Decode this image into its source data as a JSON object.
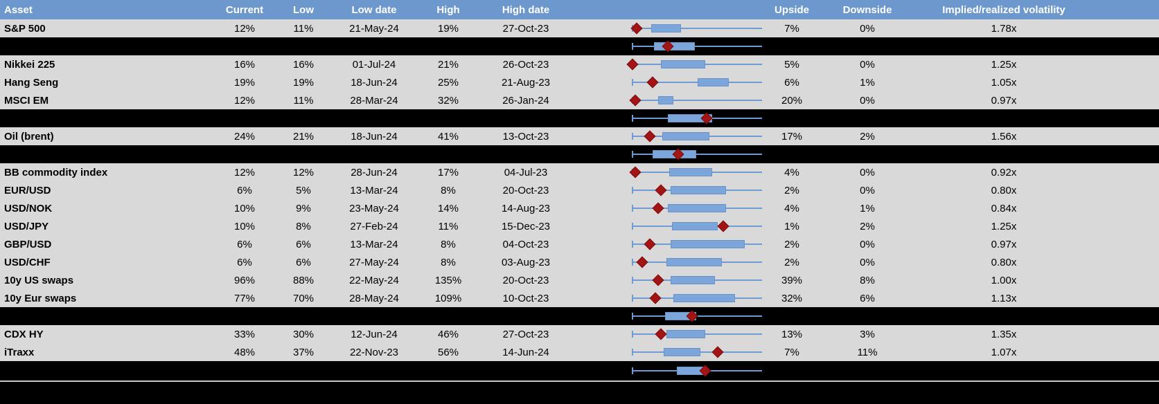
{
  "colors": {
    "header_blue": "#6D98CD",
    "row_gray": "#D9D9D9",
    "separator_black": "#000000",
    "box_blue": "#7CA5DC",
    "box_border": "#6A93C3",
    "whisker_blue": "#6F9BD3",
    "diamond_red": "#A31414",
    "divider_gray": "#C9C9C9"
  },
  "chart_data": {
    "type": "table",
    "columns": [
      "Asset",
      "Current",
      "Low",
      "Low date",
      "High",
      "High date",
      "",
      "Upside",
      "Downside",
      "Implied/realized volatility"
    ],
    "layout_hints": {
      "boxplot_column": "whisker spans full low-high range track for every row; blue box = interquartile range; red diamond = current level; positions below are fractions 0-1 of the track width",
      "separator_rows": "black bands carry aggregate boxplots with no text"
    },
    "rows": [
      {
        "type": "data",
        "asset": "S&P 500",
        "current": "12%",
        "low": "11%",
        "low_date": "21-May-24",
        "high": "19%",
        "high_date": "27-Oct-23",
        "upside": "7%",
        "downside": "0%",
        "implied_realized": "1.78x",
        "plot": {
          "current": 0.03,
          "box_start": 0.13,
          "box_end": 0.34
        }
      },
      {
        "type": "separator",
        "plot": {
          "current": 0.25,
          "box_start": 0.15,
          "box_end": 0.44
        }
      },
      {
        "type": "data",
        "asset": "Nikkei 225",
        "current": "16%",
        "low": "16%",
        "low_date": "01-Jul-24",
        "high": "21%",
        "high_date": "26-Oct-23",
        "upside": "5%",
        "downside": "0%",
        "implied_realized": "1.25x",
        "plot": {
          "current": 0.0,
          "box_start": 0.2,
          "box_end": 0.51
        }
      },
      {
        "type": "data",
        "asset": "Hang Seng",
        "current": "19%",
        "low": "19%",
        "low_date": "18-Jun-24",
        "high": "25%",
        "high_date": "21-Aug-23",
        "upside": "6%",
        "downside": "1%",
        "implied_realized": "1.05x",
        "plot": {
          "current": 0.14,
          "box_start": 0.46,
          "box_end": 0.68
        }
      },
      {
        "type": "data",
        "asset": "MSCI EM",
        "current": "12%",
        "low": "11%",
        "low_date": "28-Mar-24",
        "high": "32%",
        "high_date": "26-Jan-24",
        "upside": "20%",
        "downside": "0%",
        "implied_realized": "0.97x",
        "plot": {
          "current": 0.02,
          "box_start": 0.18,
          "box_end": 0.29
        }
      },
      {
        "type": "separator",
        "plot": {
          "current": 0.52,
          "box_start": 0.25,
          "box_end": 0.56
        }
      },
      {
        "type": "data",
        "asset": "Oil (brent)",
        "current": "24%",
        "low": "21%",
        "low_date": "18-Jun-24",
        "high": "41%",
        "high_date": "13-Oct-23",
        "upside": "17%",
        "downside": "2%",
        "implied_realized": "1.56x",
        "plot": {
          "current": 0.12,
          "box_start": 0.21,
          "box_end": 0.54
        }
      },
      {
        "type": "separator",
        "plot": {
          "current": 0.32,
          "box_start": 0.14,
          "box_end": 0.45
        }
      },
      {
        "type": "data",
        "asset": "BB commodity index",
        "current": "12%",
        "low": "12%",
        "low_date": "28-Jun-24",
        "high": "17%",
        "high_date": "04-Jul-23",
        "upside": "4%",
        "downside": "0%",
        "implied_realized": "0.92x",
        "plot": {
          "current": 0.02,
          "box_start": 0.26,
          "box_end": 0.56
        }
      },
      {
        "type": "data",
        "asset": "EUR/USD",
        "current": "6%",
        "low": "5%",
        "low_date": "13-Mar-24",
        "high": "8%",
        "high_date": "20-Oct-23",
        "upside": "2%",
        "downside": "0%",
        "implied_realized": "0.80x",
        "plot": {
          "current": 0.2,
          "box_start": 0.27,
          "box_end": 0.66
        }
      },
      {
        "type": "data",
        "asset": "USD/NOK",
        "current": "10%",
        "low": "9%",
        "low_date": "23-May-24",
        "high": "14%",
        "high_date": "14-Aug-23",
        "upside": "4%",
        "downside": "1%",
        "implied_realized": "0.84x",
        "plot": {
          "current": 0.18,
          "box_start": 0.25,
          "box_end": 0.66
        }
      },
      {
        "type": "data",
        "asset": "USD/JPY",
        "current": "10%",
        "low": "8%",
        "low_date": "27-Feb-24",
        "high": "11%",
        "high_date": "15-Dec-23",
        "upside": "1%",
        "downside": "2%",
        "implied_realized": "1.25x",
        "plot": {
          "current": 0.64,
          "box_start": 0.28,
          "box_end": 0.6
        }
      },
      {
        "type": "data",
        "asset": "GBP/USD",
        "current": "6%",
        "low": "6%",
        "low_date": "13-Mar-24",
        "high": "8%",
        "high_date": "04-Oct-23",
        "upside": "2%",
        "downside": "0%",
        "implied_realized": "0.97x",
        "plot": {
          "current": 0.12,
          "box_start": 0.27,
          "box_end": 0.79
        }
      },
      {
        "type": "data",
        "asset": "USD/CHF",
        "current": "6%",
        "low": "6%",
        "low_date": "27-May-24",
        "high": "8%",
        "high_date": "03-Aug-23",
        "upside": "2%",
        "downside": "0%",
        "implied_realized": "0.80x",
        "plot": {
          "current": 0.07,
          "box_start": 0.24,
          "box_end": 0.63
        }
      },
      {
        "type": "data",
        "asset": "10y US swaps",
        "current": "96%",
        "low": "88%",
        "low_date": "22-May-24",
        "high": "135%",
        "high_date": "20-Oct-23",
        "upside": "39%",
        "downside": "8%",
        "implied_realized": "1.00x",
        "plot": {
          "current": 0.18,
          "box_start": 0.27,
          "box_end": 0.58
        }
      },
      {
        "type": "data",
        "asset": "10y Eur swaps",
        "current": "77%",
        "low": "70%",
        "low_date": "28-May-24",
        "high": "109%",
        "high_date": "10-Oct-23",
        "upside": "32%",
        "downside": "6%",
        "implied_realized": "1.13x",
        "plot": {
          "current": 0.16,
          "box_start": 0.29,
          "box_end": 0.72
        }
      },
      {
        "type": "separator",
        "plot": {
          "current": 0.42,
          "box_start": 0.23,
          "box_end": 0.45
        }
      },
      {
        "type": "data",
        "asset": "CDX HY",
        "current": "33%",
        "low": "30%",
        "low_date": "12-Jun-24",
        "high": "46%",
        "high_date": "27-Oct-23",
        "upside": "13%",
        "downside": "3%",
        "implied_realized": "1.35x",
        "plot": {
          "current": 0.2,
          "box_start": 0.24,
          "box_end": 0.51
        }
      },
      {
        "type": "data",
        "asset": "iTraxx",
        "current": "48%",
        "low": "37%",
        "low_date": "22-Nov-23",
        "high": "56%",
        "high_date": "14-Jun-24",
        "upside": "7%",
        "downside": "11%",
        "implied_realized": "1.07x",
        "plot": {
          "current": 0.6,
          "box_start": 0.22,
          "box_end": 0.48
        }
      },
      {
        "type": "separator",
        "tall": true,
        "plot": {
          "current": 0.51,
          "box_start": 0.31,
          "box_end": 0.51
        }
      }
    ]
  }
}
